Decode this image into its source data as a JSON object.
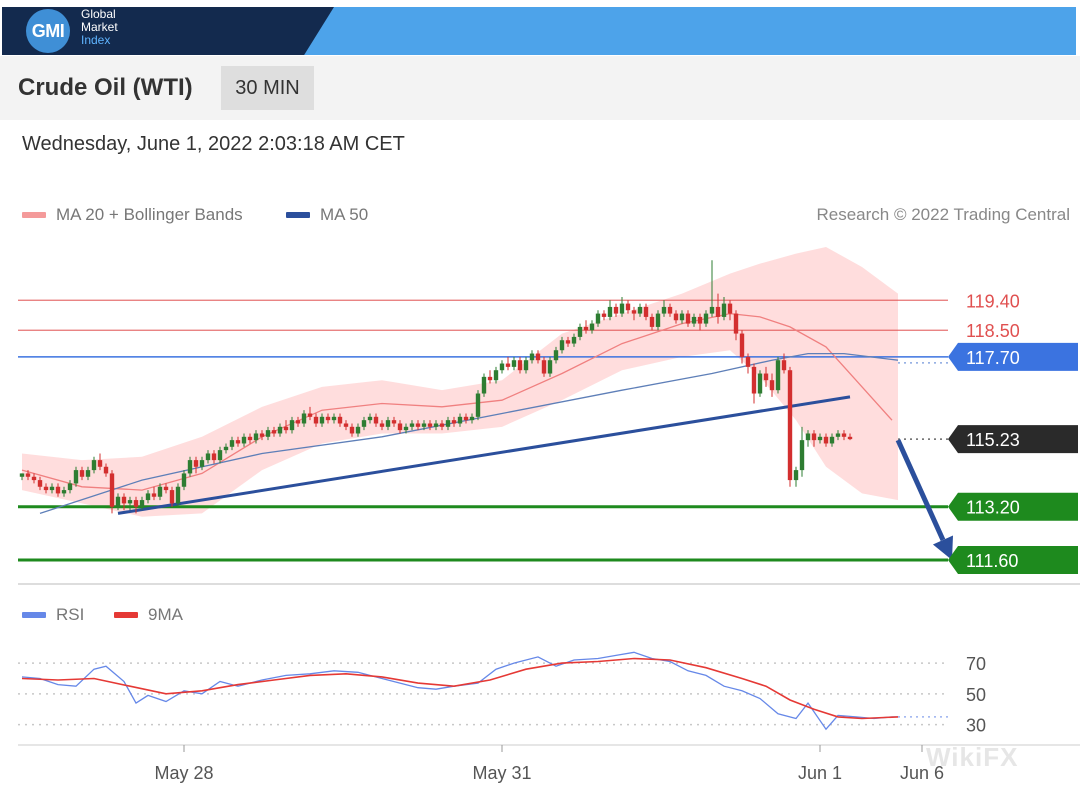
{
  "brand": {
    "logo": "GMI",
    "line1": "Global",
    "line2": "Market",
    "line3": "Index"
  },
  "header": {
    "instrument": "Crude Oil (WTI)",
    "timeframe": "30 MIN"
  },
  "datetime": "Wednesday, June 1, 2022 2:03:18 AM CET",
  "legend": {
    "ma20": "MA 20 + Bollinger Bands",
    "ma50": "MA 50",
    "credit": "Research © 2022 Trading Central"
  },
  "rsi_legend": {
    "rsi": "RSI",
    "ma9": "9MA"
  },
  "watermark": "WikiFX",
  "colors": {
    "up": "#2e7d32",
    "down": "#d32f2f",
    "resistance": "#e05050",
    "pivot": "#3b73e0",
    "support": "#1e8a1e",
    "trend": "#2b4f9c",
    "bollinger": "#ffd2d2",
    "ma20": "#f08080",
    "ma50": "#5e7fb8",
    "rsi": "#6688e8",
    "rsi_ma": "#e53935",
    "last": "#2a2a2a"
  },
  "chart_data": {
    "type": "candlestick",
    "price_range": [
      111.0,
      121.3
    ],
    "x_range": [
      0,
      155
    ],
    "x_ticks": [
      {
        "label": "May 28",
        "x": 27
      },
      {
        "label": "May 31",
        "x": 80
      },
      {
        "label": "Jun 1",
        "x": 133
      },
      {
        "label": "Jun 6",
        "x": 150
      }
    ],
    "levels": [
      {
        "label": "119.40",
        "value": 119.4,
        "role": "resistance"
      },
      {
        "label": "118.50",
        "value": 118.5,
        "role": "resistance"
      },
      {
        "label": "117.70",
        "value": 117.7,
        "role": "pivot"
      },
      {
        "label": "115.23",
        "value": 115.23,
        "role": "last"
      },
      {
        "label": "113.20",
        "value": 113.2,
        "role": "support"
      },
      {
        "label": "111.60",
        "value": 111.6,
        "role": "support"
      }
    ],
    "trendline": {
      "x0": 16,
      "y0": 113.0,
      "x1": 138,
      "y1": 116.5
    },
    "forecast_arrow": {
      "x0": 146,
      "y0": 115.2,
      "x1": 155,
      "y1": 111.6
    },
    "ma20": [
      [
        0,
        114.3
      ],
      [
        10,
        113.8
      ],
      [
        20,
        113.7
      ],
      [
        30,
        114.2
      ],
      [
        40,
        115.3
      ],
      [
        50,
        116.1
      ],
      [
        60,
        116.3
      ],
      [
        70,
        116.2
      ],
      [
        80,
        116.4
      ],
      [
        90,
        117.2
      ],
      [
        100,
        118.1
      ],
      [
        110,
        118.7
      ],
      [
        118,
        119.0
      ],
      [
        123,
        118.9
      ],
      [
        128,
        118.6
      ],
      [
        134,
        118.0
      ],
      [
        139,
        117.0
      ],
      [
        145,
        115.8
      ]
    ],
    "ma50": [
      [
        3,
        113.0
      ],
      [
        20,
        114.0
      ],
      [
        40,
        114.8
      ],
      [
        60,
        115.3
      ],
      [
        80,
        116.0
      ],
      [
        100,
        116.7
      ],
      [
        115,
        117.2
      ],
      [
        125,
        117.6
      ],
      [
        131,
        117.8
      ],
      [
        137,
        117.8
      ],
      [
        146,
        117.6
      ]
    ],
    "bollinger_upper": [
      [
        0,
        114.8
      ],
      [
        10,
        114.6
      ],
      [
        20,
        114.7
      ],
      [
        30,
        115.3
      ],
      [
        40,
        116.2
      ],
      [
        50,
        116.8
      ],
      [
        60,
        117.0
      ],
      [
        70,
        116.7
      ],
      [
        80,
        117.0
      ],
      [
        90,
        118.4
      ],
      [
        100,
        119.0
      ],
      [
        110,
        119.6
      ],
      [
        118,
        120.2
      ],
      [
        123,
        120.5
      ],
      [
        129,
        120.8
      ],
      [
        134,
        121.0
      ],
      [
        140,
        120.4
      ],
      [
        146,
        119.6
      ]
    ],
    "bollinger_lower": [
      [
        0,
        113.7
      ],
      [
        10,
        113.3
      ],
      [
        20,
        112.9
      ],
      [
        30,
        113.0
      ],
      [
        40,
        114.3
      ],
      [
        50,
        115.1
      ],
      [
        60,
        115.4
      ],
      [
        70,
        115.4
      ],
      [
        80,
        115.6
      ],
      [
        90,
        116.4
      ],
      [
        100,
        117.3
      ],
      [
        110,
        117.7
      ],
      [
        118,
        117.9
      ],
      [
        123,
        117.1
      ],
      [
        129,
        115.8
      ],
      [
        134,
        114.4
      ],
      [
        140,
        113.6
      ],
      [
        146,
        113.4
      ]
    ],
    "candles": [
      [
        114.1,
        114.2,
        114.2,
        114.0
      ],
      [
        114.2,
        114.1,
        114.3,
        114.0
      ],
      [
        114.1,
        114.0,
        114.2,
        113.9
      ],
      [
        114.0,
        113.8,
        114.1,
        113.7
      ],
      [
        113.8,
        113.7,
        113.9,
        113.6
      ],
      [
        113.7,
        113.8,
        113.9,
        113.6
      ],
      [
        113.8,
        113.6,
        113.9,
        113.5
      ],
      [
        113.6,
        113.7,
        113.8,
        113.5
      ],
      [
        113.7,
        113.9,
        114.0,
        113.6
      ],
      [
        113.9,
        114.3,
        114.4,
        113.8
      ],
      [
        114.3,
        114.1,
        114.4,
        114.0
      ],
      [
        114.1,
        114.3,
        114.4,
        114.0
      ],
      [
        114.3,
        114.6,
        114.7,
        114.2
      ],
      [
        114.6,
        114.4,
        114.8,
        114.3
      ],
      [
        114.4,
        114.2,
        114.5,
        114.1
      ],
      [
        114.2,
        113.2,
        114.3,
        113.0
      ],
      [
        113.2,
        113.5,
        113.6,
        113.1
      ],
      [
        113.5,
        113.3,
        113.6,
        113.1
      ],
      [
        113.3,
        113.4,
        113.5,
        113.1
      ],
      [
        113.4,
        113.2,
        113.5,
        113.0
      ],
      [
        113.2,
        113.4,
        113.5,
        113.1
      ],
      [
        113.4,
        113.6,
        113.7,
        113.3
      ],
      [
        113.6,
        113.5,
        113.8,
        113.4
      ],
      [
        113.5,
        113.8,
        113.9,
        113.4
      ],
      [
        113.8,
        113.7,
        113.9,
        113.6
      ],
      [
        113.7,
        113.3,
        113.8,
        113.2
      ],
      [
        113.3,
        113.8,
        113.9,
        113.2
      ],
      [
        113.8,
        114.2,
        114.3,
        113.7
      ],
      [
        114.2,
        114.6,
        114.7,
        114.1
      ],
      [
        114.6,
        114.4,
        114.7,
        114.2
      ],
      [
        114.4,
        114.6,
        114.7,
        114.3
      ],
      [
        114.6,
        114.8,
        114.9,
        114.5
      ],
      [
        114.8,
        114.6,
        114.9,
        114.5
      ],
      [
        114.6,
        114.9,
        115.0,
        114.5
      ],
      [
        114.9,
        115.0,
        115.1,
        114.8
      ],
      [
        115.0,
        115.2,
        115.3,
        114.9
      ],
      [
        115.2,
        115.1,
        115.3,
        115.0
      ],
      [
        115.1,
        115.3,
        115.4,
        115.0
      ],
      [
        115.3,
        115.2,
        115.4,
        115.1
      ],
      [
        115.2,
        115.4,
        115.5,
        115.1
      ],
      [
        115.4,
        115.3,
        115.5,
        115.2
      ],
      [
        115.3,
        115.5,
        115.6,
        115.2
      ],
      [
        115.5,
        115.4,
        115.6,
        115.3
      ],
      [
        115.4,
        115.6,
        115.7,
        115.3
      ],
      [
        115.6,
        115.5,
        115.8,
        115.4
      ],
      [
        115.5,
        115.8,
        115.9,
        115.4
      ],
      [
        115.8,
        115.7,
        115.9,
        115.6
      ],
      [
        115.7,
        116.0,
        116.1,
        115.6
      ],
      [
        116.0,
        115.9,
        116.2,
        115.8
      ],
      [
        115.9,
        115.7,
        116.0,
        115.6
      ],
      [
        115.7,
        115.9,
        116.0,
        115.6
      ],
      [
        115.9,
        115.8,
        116.0,
        115.7
      ],
      [
        115.8,
        115.9,
        116.0,
        115.7
      ],
      [
        115.9,
        115.7,
        116.0,
        115.6
      ],
      [
        115.7,
        115.6,
        115.8,
        115.5
      ],
      [
        115.6,
        115.4,
        115.7,
        115.3
      ],
      [
        115.4,
        115.6,
        115.7,
        115.3
      ],
      [
        115.6,
        115.8,
        115.9,
        115.5
      ],
      [
        115.8,
        115.9,
        116.0,
        115.7
      ],
      [
        115.9,
        115.7,
        116.0,
        115.6
      ],
      [
        115.7,
        115.6,
        115.8,
        115.5
      ],
      [
        115.6,
        115.8,
        115.9,
        115.5
      ],
      [
        115.8,
        115.7,
        115.9,
        115.6
      ],
      [
        115.7,
        115.5,
        115.8,
        115.4
      ],
      [
        115.5,
        115.6,
        115.7,
        115.4
      ],
      [
        115.6,
        115.7,
        115.8,
        115.5
      ],
      [
        115.7,
        115.6,
        115.8,
        115.5
      ],
      [
        115.6,
        115.7,
        115.8,
        115.5
      ],
      [
        115.7,
        115.6,
        115.8,
        115.5
      ],
      [
        115.6,
        115.7,
        115.8,
        115.5
      ],
      [
        115.7,
        115.6,
        115.8,
        115.5
      ],
      [
        115.6,
        115.8,
        115.9,
        115.5
      ],
      [
        115.8,
        115.7,
        115.9,
        115.6
      ],
      [
        115.7,
        115.9,
        116.0,
        115.6
      ],
      [
        115.9,
        115.8,
        116.0,
        115.7
      ],
      [
        115.8,
        115.9,
        116.0,
        115.7
      ],
      [
        115.9,
        116.6,
        116.7,
        115.8
      ],
      [
        116.6,
        117.1,
        117.2,
        116.5
      ],
      [
        117.1,
        117.0,
        117.3,
        116.9
      ],
      [
        117.0,
        117.3,
        117.4,
        116.9
      ],
      [
        117.3,
        117.5,
        117.6,
        117.2
      ],
      [
        117.5,
        117.4,
        117.7,
        117.3
      ],
      [
        117.4,
        117.6,
        117.7,
        117.3
      ],
      [
        117.6,
        117.3,
        117.7,
        117.2
      ],
      [
        117.3,
        117.6,
        117.7,
        117.2
      ],
      [
        117.6,
        117.8,
        117.9,
        117.5
      ],
      [
        117.8,
        117.6,
        117.9,
        117.5
      ],
      [
        117.6,
        117.2,
        117.7,
        117.1
      ],
      [
        117.2,
        117.6,
        117.7,
        117.1
      ],
      [
        117.6,
        117.9,
        118.0,
        117.5
      ],
      [
        117.9,
        118.2,
        118.3,
        117.8
      ],
      [
        118.2,
        118.1,
        118.3,
        118.0
      ],
      [
        118.1,
        118.3,
        118.4,
        118.0
      ],
      [
        118.3,
        118.6,
        118.7,
        118.2
      ],
      [
        118.6,
        118.5,
        118.8,
        118.4
      ],
      [
        118.5,
        118.7,
        118.8,
        118.4
      ],
      [
        118.7,
        119.0,
        119.1,
        118.6
      ],
      [
        119.0,
        118.9,
        119.1,
        118.8
      ],
      [
        118.9,
        119.2,
        119.4,
        118.8
      ],
      [
        119.2,
        119.0,
        119.3,
        118.9
      ],
      [
        119.0,
        119.3,
        119.5,
        118.9
      ],
      [
        119.3,
        119.1,
        119.4,
        119.0
      ],
      [
        119.1,
        119.0,
        119.2,
        118.8
      ],
      [
        119.0,
        119.2,
        119.3,
        118.9
      ],
      [
        119.2,
        118.9,
        119.3,
        118.8
      ],
      [
        118.9,
        118.6,
        119.0,
        118.5
      ],
      [
        118.6,
        119.0,
        119.1,
        118.5
      ],
      [
        119.0,
        119.2,
        119.4,
        118.9
      ],
      [
        119.2,
        119.0,
        119.3,
        118.9
      ],
      [
        119.0,
        118.8,
        119.1,
        118.7
      ],
      [
        118.8,
        119.0,
        119.1,
        118.7
      ],
      [
        119.0,
        118.7,
        119.1,
        118.6
      ],
      [
        118.7,
        118.9,
        119.0,
        118.6
      ],
      [
        118.9,
        118.7,
        119.0,
        118.5
      ],
      [
        118.7,
        119.0,
        119.1,
        118.6
      ],
      [
        119.0,
        119.2,
        120.6,
        118.9
      ],
      [
        119.2,
        118.9,
        119.6,
        118.7
      ],
      [
        118.9,
        119.3,
        119.5,
        118.8
      ],
      [
        119.3,
        119.0,
        119.4,
        118.8
      ],
      [
        119.0,
        118.4,
        119.1,
        118.2
      ],
      [
        118.4,
        117.7,
        118.5,
        117.5
      ],
      [
        117.7,
        117.4,
        117.8,
        117.2
      ],
      [
        117.4,
        116.6,
        117.5,
        116.3
      ],
      [
        116.6,
        117.2,
        117.3,
        116.5
      ],
      [
        117.2,
        117.0,
        117.4,
        116.8
      ],
      [
        117.0,
        116.7,
        117.2,
        116.5
      ],
      [
        116.7,
        117.6,
        117.7,
        116.6
      ],
      [
        117.6,
        117.3,
        117.8,
        117.2
      ],
      [
        117.3,
        114.0,
        117.4,
        113.8
      ],
      [
        114.0,
        114.3,
        114.4,
        113.8
      ],
      [
        114.3,
        115.2,
        115.6,
        114.1
      ],
      [
        115.2,
        115.4,
        115.5,
        115.0
      ],
      [
        115.4,
        115.2,
        115.5,
        115.0
      ],
      [
        115.2,
        115.3,
        115.4,
        115.1
      ],
      [
        115.3,
        115.1,
        115.4,
        115.0
      ],
      [
        115.1,
        115.3,
        115.4,
        115.0
      ],
      [
        115.3,
        115.4,
        115.5,
        115.2
      ],
      [
        115.4,
        115.3,
        115.5,
        115.2
      ],
      [
        115.3,
        115.23,
        115.4,
        115.2
      ]
    ],
    "rsi": {
      "levels": [
        {
          "label": "70",
          "value": 70
        },
        {
          "label": "50",
          "value": 50
        },
        {
          "label": "30",
          "value": 30
        }
      ],
      "range": [
        20,
        85
      ],
      "rsi_line": [
        [
          0,
          61
        ],
        [
          3,
          60
        ],
        [
          6,
          56
        ],
        [
          9,
          55
        ],
        [
          12,
          66
        ],
        [
          14,
          68
        ],
        [
          17,
          58
        ],
        [
          19,
          44
        ],
        [
          21,
          49
        ],
        [
          24,
          45
        ],
        [
          27,
          52
        ],
        [
          30,
          50
        ],
        [
          33,
          58
        ],
        [
          36,
          55
        ],
        [
          40,
          59
        ],
        [
          44,
          62
        ],
        [
          48,
          63
        ],
        [
          52,
          65
        ],
        [
          56,
          64
        ],
        [
          60,
          60
        ],
        [
          63,
          57
        ],
        [
          66,
          54
        ],
        [
          69,
          53
        ],
        [
          72,
          55
        ],
        [
          76,
          57
        ],
        [
          79,
          66
        ],
        [
          82,
          70
        ],
        [
          86,
          74
        ],
        [
          89,
          68
        ],
        [
          92,
          72
        ],
        [
          96,
          73
        ],
        [
          99,
          75
        ],
        [
          102,
          77
        ],
        [
          105,
          73
        ],
        [
          108,
          71
        ],
        [
          111,
          65
        ],
        [
          114,
          62
        ],
        [
          117,
          55
        ],
        [
          120,
          52
        ],
        [
          123,
          47
        ],
        [
          126,
          37
        ],
        [
          129,
          34
        ],
        [
          131,
          44
        ],
        [
          134,
          27
        ],
        [
          136,
          36
        ],
        [
          139,
          35
        ],
        [
          142,
          34
        ],
        [
          145,
          35
        ],
        [
          146,
          35
        ]
      ],
      "ma9_line": [
        [
          0,
          60
        ],
        [
          6,
          59
        ],
        [
          12,
          60
        ],
        [
          18,
          55
        ],
        [
          24,
          50
        ],
        [
          30,
          52
        ],
        [
          36,
          56
        ],
        [
          42,
          59
        ],
        [
          48,
          62
        ],
        [
          54,
          63
        ],
        [
          60,
          61
        ],
        [
          66,
          57
        ],
        [
          72,
          55
        ],
        [
          78,
          59
        ],
        [
          84,
          66
        ],
        [
          90,
          70
        ],
        [
          96,
          71
        ],
        [
          102,
          73
        ],
        [
          108,
          72
        ],
        [
          114,
          67
        ],
        [
          120,
          60
        ],
        [
          124,
          55
        ],
        [
          128,
          46
        ],
        [
          132,
          40
        ],
        [
          136,
          35
        ],
        [
          140,
          34
        ],
        [
          146,
          35
        ]
      ]
    }
  }
}
